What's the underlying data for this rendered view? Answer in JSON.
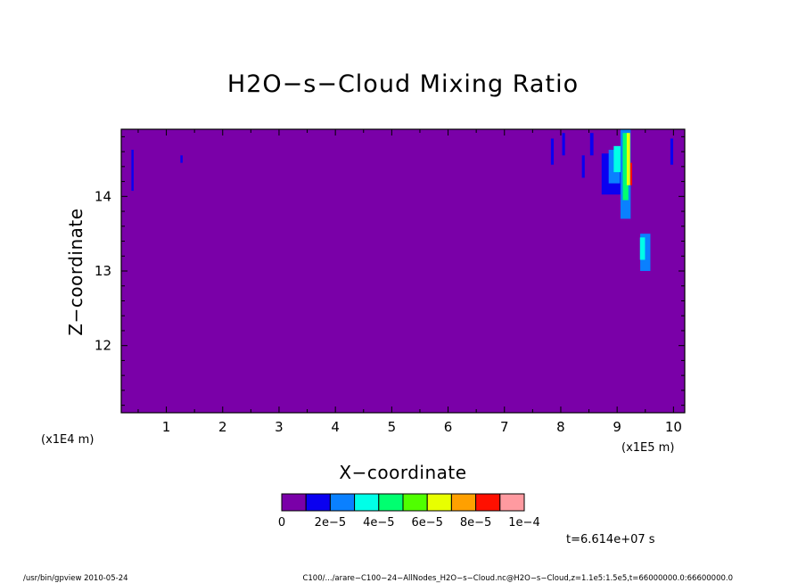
{
  "chart_data": {
    "type": "heatmap",
    "title": "H2O−s−Cloud Mixing Ratio",
    "xlabel": "X−coordinate",
    "ylabel": "Z−coordinate",
    "x_scale_label": "(x1E5 m)",
    "y_scale_label": "(x1E4 m)",
    "xlim": [
      0.2,
      10.2
    ],
    "ylim": [
      11.1,
      14.9
    ],
    "x_ticks": [
      1,
      2,
      3,
      4,
      5,
      6,
      7,
      8,
      9,
      10
    ],
    "y_ticks": [
      12,
      13,
      14
    ],
    "colorbar": {
      "levels": [
        0,
        1e-05,
        2e-05,
        3e-05,
        4e-05,
        5e-05,
        6e-05,
        7e-05,
        8e-05,
        9e-05,
        0.0001
      ],
      "tick_labels": [
        "0",
        "2e−5",
        "4e−5",
        "6e−5",
        "8e−5",
        "1e−4"
      ],
      "colors": [
        "#7a00a8",
        "#0a00f0",
        "#0a80ff",
        "#00ffe8",
        "#00ff70",
        "#50ff00",
        "#e8ff00",
        "#ffa000",
        "#ff1000",
        "#ff9aa0"
      ]
    },
    "time_label": "t=6.614e+07 s",
    "features": [
      {
        "x": 0.4,
        "z": 14.35,
        "dx": 0.04,
        "dz": 0.55,
        "level": 1
      },
      {
        "x": 1.27,
        "z": 14.5,
        "dx": 0.04,
        "dz": 0.1,
        "level": 1
      },
      {
        "x": 7.85,
        "z": 14.6,
        "dx": 0.05,
        "dz": 0.35,
        "level": 1
      },
      {
        "x": 8.05,
        "z": 14.7,
        "dx": 0.05,
        "dz": 0.3,
        "level": 1
      },
      {
        "x": 8.4,
        "z": 14.4,
        "dx": 0.05,
        "dz": 0.3,
        "level": 1
      },
      {
        "x": 8.55,
        "z": 14.7,
        "dx": 0.06,
        "dz": 0.3,
        "level": 1
      },
      {
        "x": 8.9,
        "z": 14.3,
        "dx": 0.35,
        "dz": 0.55,
        "level": 1
      },
      {
        "x": 8.95,
        "z": 14.4,
        "dx": 0.2,
        "dz": 0.45,
        "level": 2
      },
      {
        "x": 9.0,
        "z": 14.5,
        "dx": 0.12,
        "dz": 0.35,
        "level": 3
      },
      {
        "x": 9.15,
        "z": 14.3,
        "dx": 0.18,
        "dz": 1.2,
        "level": 2
      },
      {
        "x": 9.15,
        "z": 14.4,
        "dx": 0.1,
        "dz": 0.9,
        "level": 4
      },
      {
        "x": 9.2,
        "z": 14.5,
        "dx": 0.06,
        "dz": 0.7,
        "level": 6
      },
      {
        "x": 9.25,
        "z": 14.3,
        "dx": 0.03,
        "dz": 0.3,
        "level": 8
      },
      {
        "x": 9.5,
        "z": 13.25,
        "dx": 0.18,
        "dz": 0.5,
        "level": 2
      },
      {
        "x": 9.45,
        "z": 13.3,
        "dx": 0.09,
        "dz": 0.3,
        "level": 3
      },
      {
        "x": 9.97,
        "z": 14.6,
        "dx": 0.05,
        "dz": 0.35,
        "level": 1
      }
    ]
  },
  "footer": {
    "left": "/usr/bin/gpview   2010-05-24",
    "right": "C100/.../arare−C100−24−AllNodes_H2O−s−Cloud.nc@H2O−s−Cloud,z=1.1e5:1.5e5,t=66000000.0:66600000.0"
  }
}
